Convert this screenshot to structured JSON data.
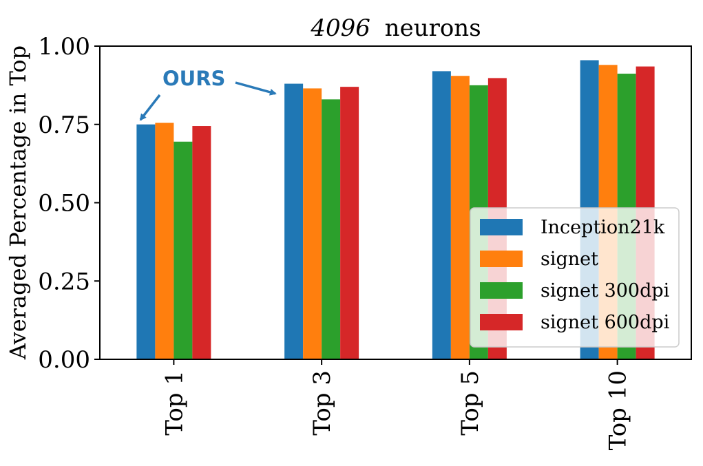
{
  "chart_data": {
    "type": "bar",
    "title_italic": "4096",
    "title_rest": "neurons",
    "xlabel": "",
    "ylabel": "Averaged Percentage in Top",
    "ylim": [
      0,
      1.0
    ],
    "yticks": [
      "0.00",
      "0.25",
      "0.50",
      "0.75",
      "1.00"
    ],
    "categories": [
      "Top 1",
      "Top 3",
      "Top 5",
      "Top 10"
    ],
    "series": [
      {
        "name": "Inception21k",
        "color": "#1f77b4",
        "values": [
          0.75,
          0.88,
          0.92,
          0.955
        ]
      },
      {
        "name": "signet",
        "color": "#ff7f0e",
        "values": [
          0.755,
          0.865,
          0.905,
          0.94
        ]
      },
      {
        "name": "signet 300dpi",
        "color": "#2ca02c",
        "values": [
          0.695,
          0.83,
          0.875,
          0.912
        ]
      },
      {
        "name": "signet 600dpi",
        "color": "#d62728",
        "values": [
          0.745,
          0.87,
          0.898,
          0.935
        ]
      }
    ],
    "legend_position": "lower-right",
    "grid": false,
    "annotation": {
      "text": "OURS",
      "color": "#2a7ab8"
    }
  }
}
